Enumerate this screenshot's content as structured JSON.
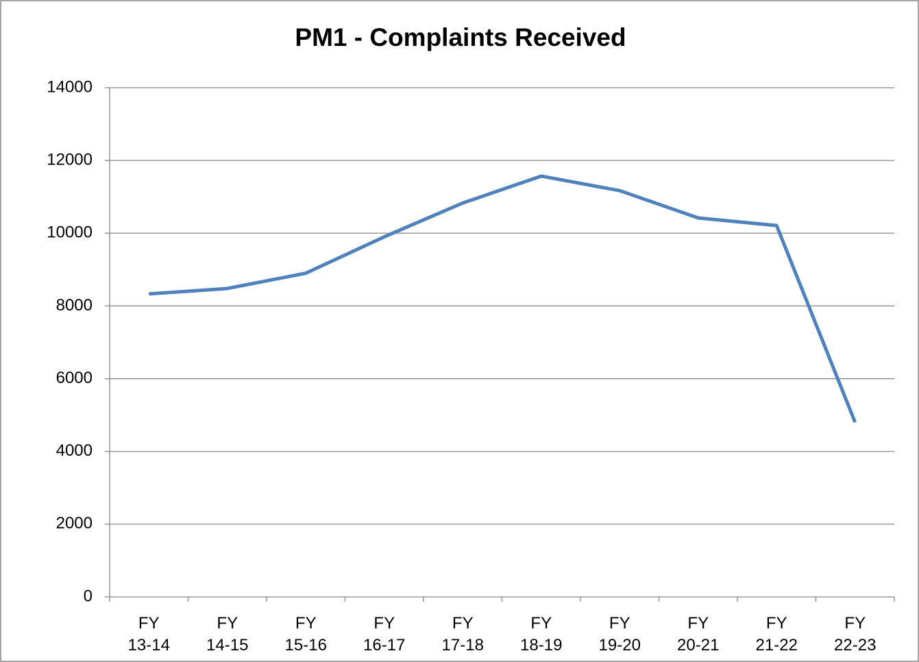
{
  "chart_data": {
    "type": "line",
    "title": "PM1 - Complaints Received",
    "categories": [
      "FY 13-14",
      "FY 14-15",
      "FY 15-16",
      "FY 16-17",
      "FY 17-18",
      "FY 18-19",
      "FY 19-20",
      "FY 20-21",
      "FY 21-22",
      "FY 22-23"
    ],
    "series": [
      {
        "color": "#4f81bd",
        "values": [
          8330,
          8480,
          8900,
          9900,
          10830,
          11570,
          11170,
          10420,
          10210,
          4800
        ]
      }
    ],
    "ylim": [
      0,
      14000
    ],
    "yticks": [
      0,
      2000,
      4000,
      6000,
      8000,
      10000,
      12000,
      14000
    ],
    "grid": true
  }
}
